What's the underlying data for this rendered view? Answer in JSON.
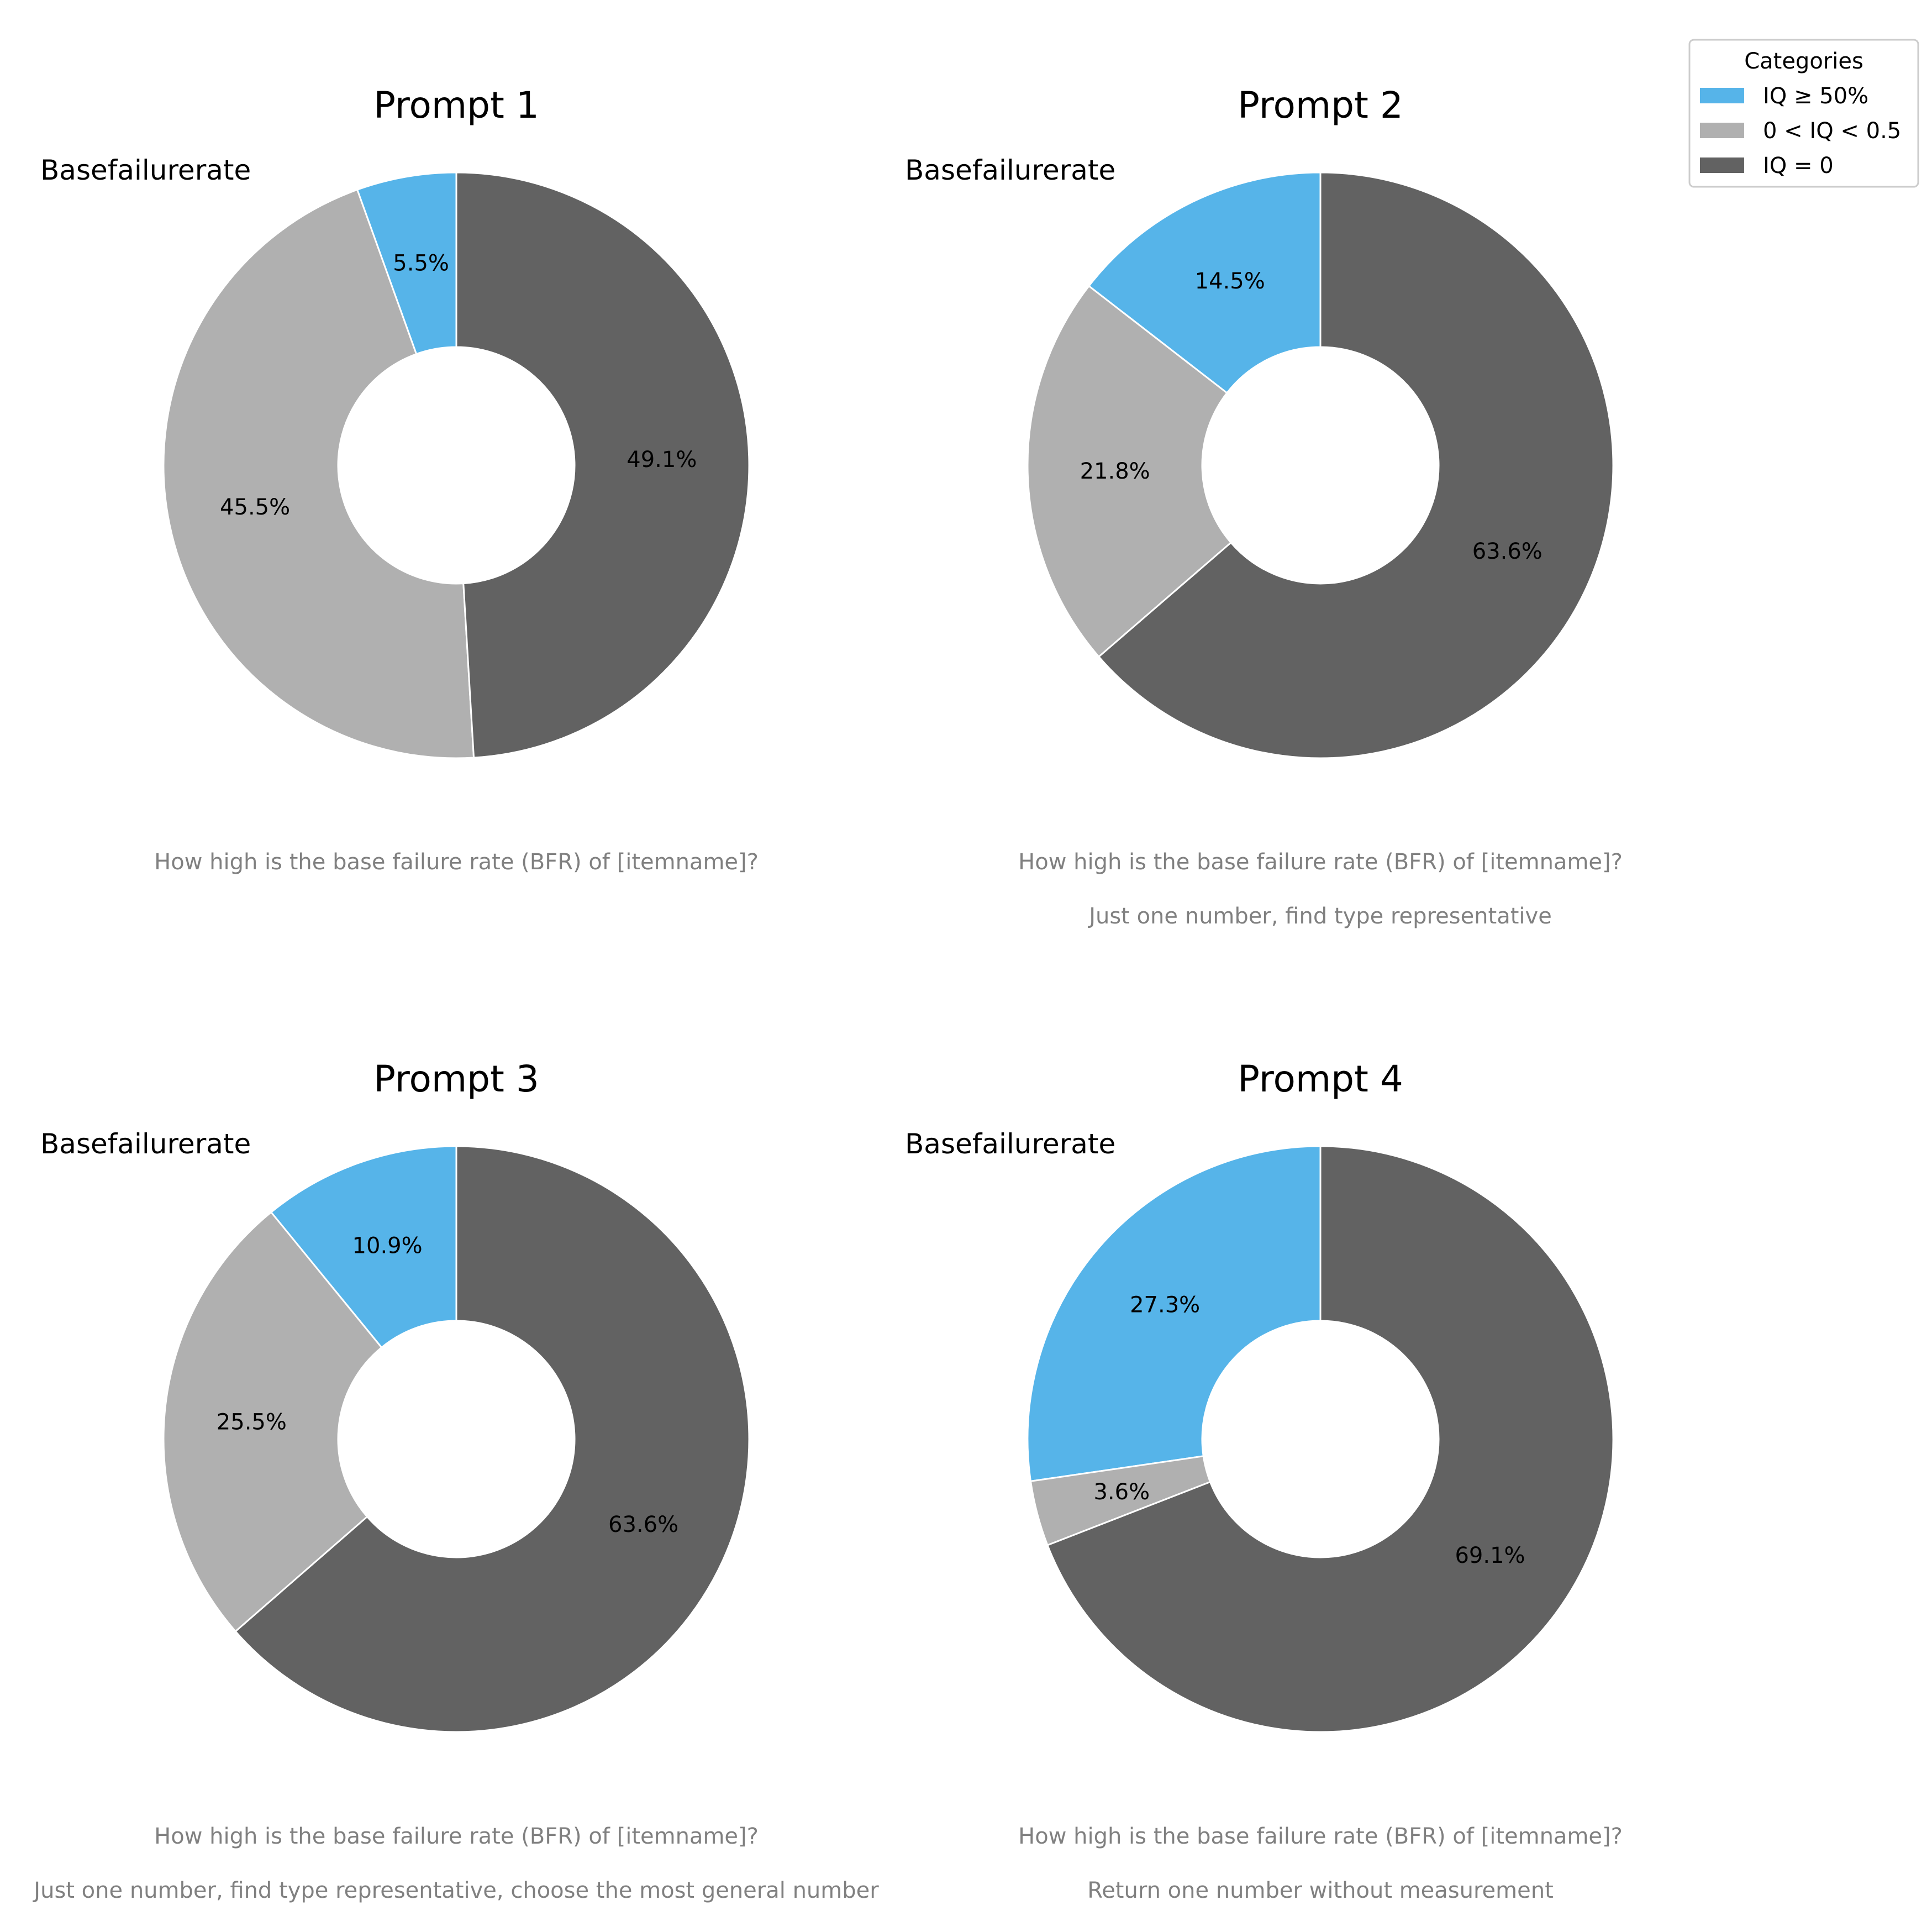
{
  "legend": {
    "title": "Categories",
    "items": [
      {
        "label": "IQ ≥ 50%",
        "color": "#56B4E9"
      },
      {
        "label": "0 < IQ < 0.5",
        "color": "#B0B0B0"
      },
      {
        "label": "IQ = 0",
        "color": "#626262"
      }
    ]
  },
  "chart_data": [
    {
      "type": "pie",
      "title": "Prompt 1",
      "label": "Basefailurerate",
      "categories": [
        "IQ ≥ 50%",
        "0 < IQ < 0.5",
        "IQ = 0"
      ],
      "values": [
        5.5,
        45.5,
        49.1
      ],
      "value_labels": [
        "5.5%",
        "45.5%",
        "49.1%"
      ],
      "caption": [
        "How high is the base failure rate (BFR) of [itemname]?"
      ]
    },
    {
      "type": "pie",
      "title": "Prompt 2",
      "label": "Basefailurerate",
      "categories": [
        "IQ ≥ 50%",
        "0 < IQ < 0.5",
        "IQ = 0"
      ],
      "values": [
        14.5,
        21.8,
        63.6
      ],
      "value_labels": [
        "14.5%",
        "21.8%",
        "63.6%"
      ],
      "caption": [
        "How high is the base failure rate (BFR) of [itemname]?",
        "Just one number, find type representative"
      ]
    },
    {
      "type": "pie",
      "title": "Prompt 3",
      "label": "Basefailurerate",
      "categories": [
        "IQ ≥ 50%",
        "0 < IQ < 0.5",
        "IQ = 0"
      ],
      "values": [
        10.9,
        25.5,
        63.6
      ],
      "value_labels": [
        "10.9%",
        "25.5%",
        "63.6%"
      ],
      "caption": [
        "How high is the base failure rate (BFR) of [itemname]?",
        "Just one number, find type representative, choose the most general number"
      ]
    },
    {
      "type": "pie",
      "title": "Prompt 4",
      "label": "Basefailurerate",
      "categories": [
        "IQ ≥ 50%",
        "0 < IQ < 0.5",
        "IQ = 0"
      ],
      "values": [
        27.3,
        3.6,
        69.1
      ],
      "value_labels": [
        "27.3%",
        "3.6%",
        "69.1%"
      ],
      "caption": [
        "How high is the base failure rate (BFR) of [itemname]?",
        "Return one number without measurement"
      ]
    }
  ]
}
